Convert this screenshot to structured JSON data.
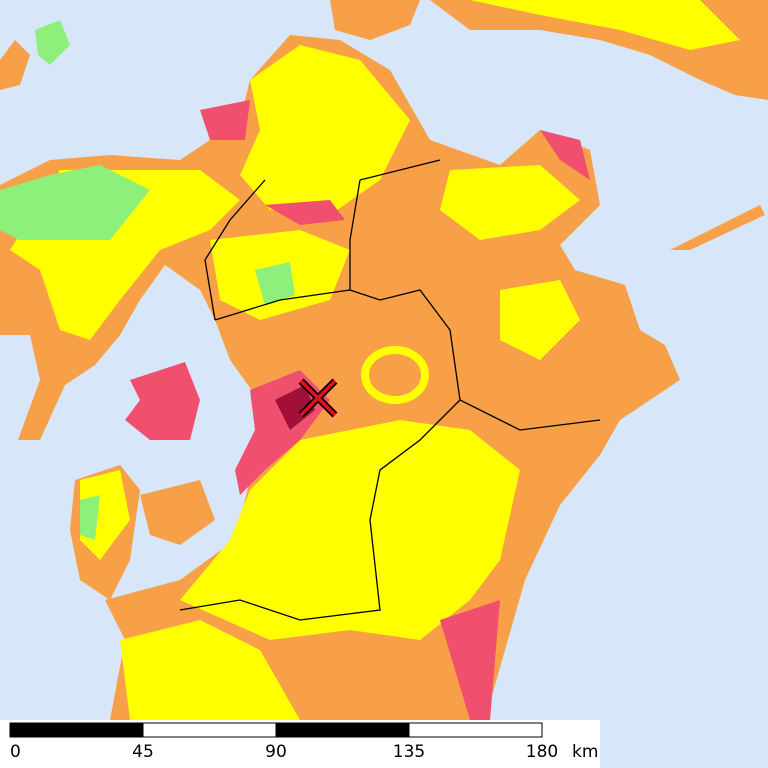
{
  "scale_bar": {
    "ticks": [
      0,
      45,
      90,
      135,
      180
    ],
    "unit": "km"
  }
}
